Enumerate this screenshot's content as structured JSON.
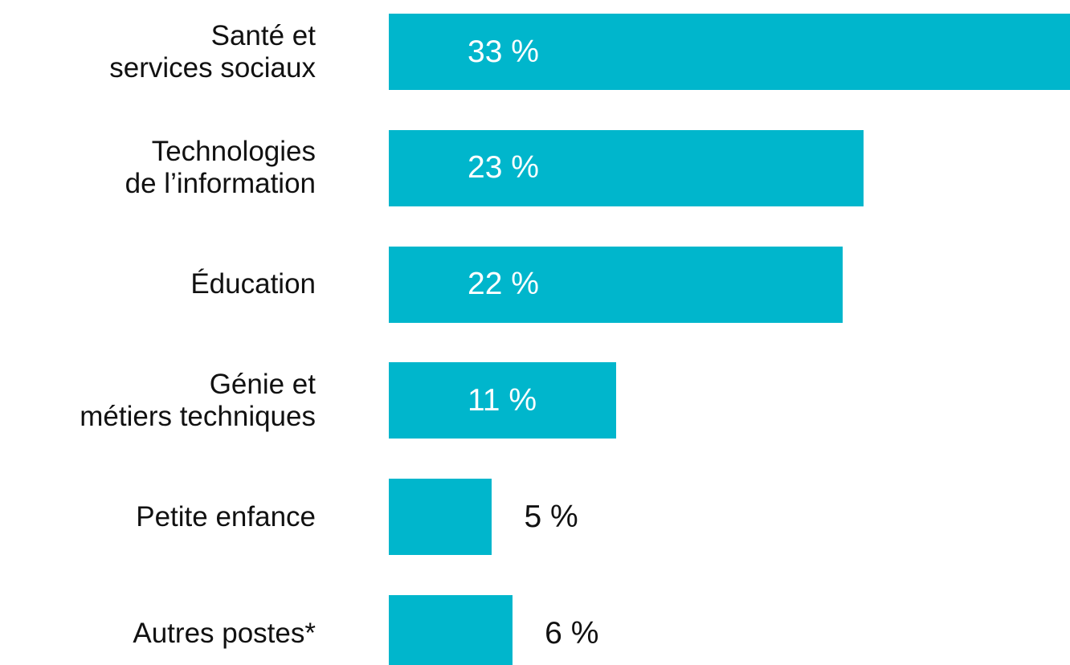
{
  "chart_data": {
    "type": "bar",
    "orientation": "horizontal",
    "categories": [
      "Santé et\nservices sociaux",
      "Technologies\nde l’information",
      "Éducation",
      "Génie et\nmétiers techniques",
      "Petite enfance",
      "Autres postes*"
    ],
    "values": [
      33,
      23,
      22,
      11,
      5,
      6
    ],
    "value_labels": [
      "33 %",
      "23 %",
      "22 %",
      "11 %",
      "5 %",
      "6 %"
    ],
    "color": "#00b6cc"
  }
}
